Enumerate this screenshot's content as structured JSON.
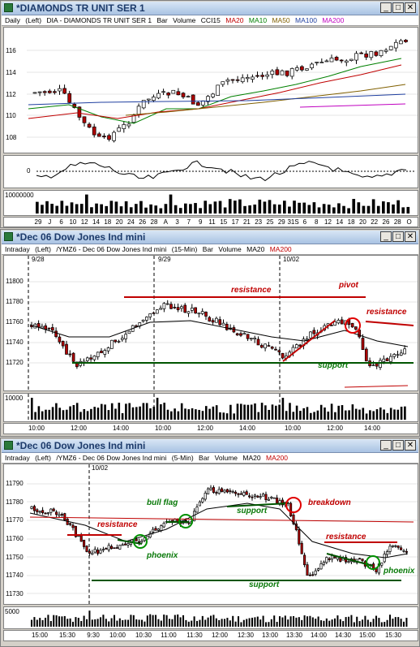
{
  "win1": {
    "title": "*DIAMONDS TR UNIT SER 1",
    "info": [
      "Daily",
      "(Left)",
      "DIA - DIAMONDS TR UNIT SER 1",
      "Bar",
      "Volume",
      "CCI15"
    ],
    "ma": [
      {
        "label": "MA20",
        "color": "#c00000"
      },
      {
        "label": "MA10",
        "color": "#008000"
      },
      {
        "label": "MA50",
        "color": "#806000"
      },
      {
        "label": "MA100",
        "color": "#1f3fa0"
      },
      {
        "label": "MA200",
        "color": "#c000c0"
      }
    ],
    "price_ticks": [
      "116",
      "114",
      "112",
      "110",
      "108"
    ],
    "osc_tick": "0",
    "vol_tick": "10000000",
    "x_ticks": [
      "29",
      "J",
      "6",
      "10",
      "12",
      "14",
      "18",
      "20",
      "24",
      "26",
      "28",
      "A",
      "3",
      "7",
      "9",
      "11",
      "15",
      "17",
      "21",
      "23",
      "25",
      "29",
      "31S",
      "6",
      "8",
      "12",
      "14",
      "18",
      "20",
      "22",
      "26",
      "28",
      "O"
    ]
  },
  "win2": {
    "title": "*Dec 06  Dow Jones Ind mini",
    "info": [
      "Intraday",
      "(Left)",
      "/YMZ6 - Dec 06  Dow Jones Ind mini",
      "(15-Min)",
      "Bar",
      "Volume"
    ],
    "ma": [
      {
        "label": "MA20",
        "color": "#000000"
      },
      {
        "label": "MA200",
        "color": "#c00000"
      }
    ],
    "dates": [
      "9/28",
      "9/29",
      "10/02"
    ],
    "price_ticks": [
      "11800",
      "11780",
      "11760",
      "11740",
      "11720"
    ],
    "vol_tick": "10000",
    "x_ticks": [
      "10:00",
      "12:00",
      "14:00",
      "10:00",
      "12:00",
      "14:00",
      "10:00",
      "12:00",
      "14:00"
    ],
    "annotations": {
      "resistance1": "resistance",
      "resistance2": "resistance",
      "pivot": "pivot",
      "support": "support"
    }
  },
  "win3": {
    "title": "*Dec 06  Dow Jones Ind mini",
    "info": [
      "Intraday",
      "(Left)",
      "/YMZ6 - Dec 06  Dow Jones Ind mini",
      "(5-Min)",
      "Bar",
      "Volume"
    ],
    "ma": [
      {
        "label": "MA20",
        "color": "#000000"
      },
      {
        "label": "MA200",
        "color": "#c00000"
      }
    ],
    "date": "10/02",
    "price_ticks": [
      "11790",
      "11780",
      "11770",
      "11760",
      "11750",
      "11740",
      "11730"
    ],
    "vol_tick": "5000",
    "x_ticks": [
      "15:00",
      "15:30",
      "9:30",
      "10:00",
      "10:30",
      "11:00",
      "11:30",
      "12:00",
      "12:30",
      "13:00",
      "13:30",
      "14:00",
      "14:30",
      "15:00",
      "15:30"
    ],
    "annotations": {
      "bull_flag": "bull flag",
      "breakdown": "breakdown",
      "resistance1": "resistance",
      "resistance2": "resistance",
      "support1": "support",
      "support2": "support",
      "phoenix1": "phoenix",
      "phoenix2": "phoenix"
    }
  }
}
